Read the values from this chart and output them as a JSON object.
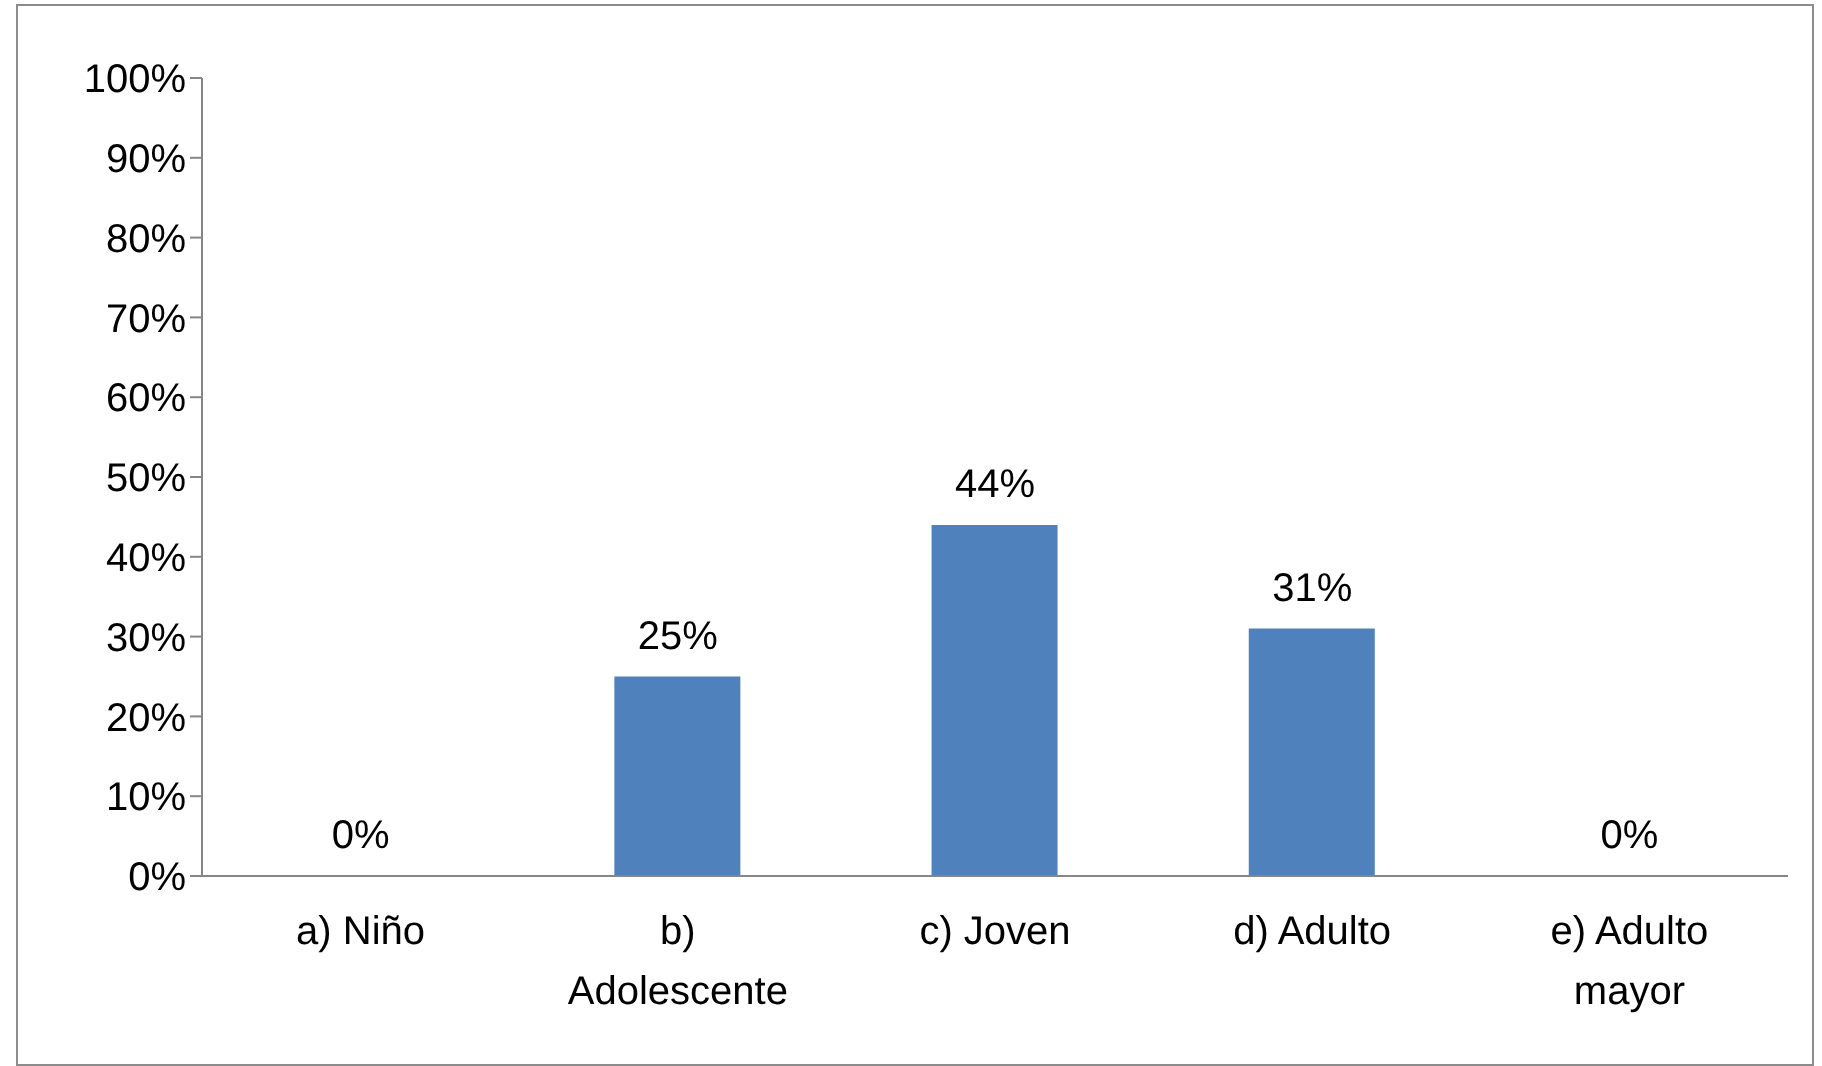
{
  "chart_data": {
    "type": "bar",
    "categories": [
      "a) Niño",
      "b) Adolescente",
      "c) Joven",
      "d) Adulto",
      "e) Adulto mayor"
    ],
    "values": [
      0,
      25,
      44,
      31,
      0
    ],
    "value_labels": [
      "0%",
      "25%",
      "44%",
      "31%",
      "0%"
    ],
    "color": "#4f81bd",
    "ylim": [
      0,
      100
    ],
    "yticks": [
      {
        "value": 0,
        "label": "0%"
      },
      {
        "value": 10,
        "label": "10%"
      },
      {
        "value": 20,
        "label": "20%"
      },
      {
        "value": 30,
        "label": "30%"
      },
      {
        "value": 40,
        "label": "40%"
      },
      {
        "value": 50,
        "label": "50%"
      },
      {
        "value": 60,
        "label": "60%"
      },
      {
        "value": 70,
        "label": "70%"
      },
      {
        "value": 80,
        "label": "80%"
      },
      {
        "value": 90,
        "label": "90%"
      },
      {
        "value": 100,
        "label": "100%"
      }
    ],
    "grid": false,
    "legend": false
  }
}
